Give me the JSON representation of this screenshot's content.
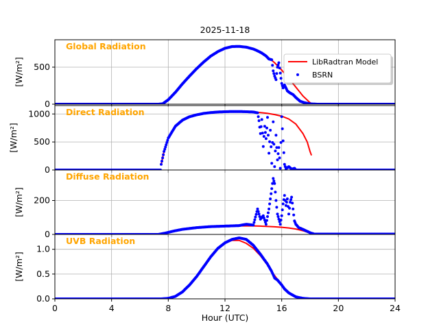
{
  "figure": {
    "title": "2025-11-18",
    "xlabel": "Hour (UTC)",
    "x_ticks": [
      0,
      4,
      8,
      12,
      16,
      20,
      24
    ],
    "x_tick_labels": [
      "0",
      "4",
      "8",
      "12",
      "16",
      "20",
      "24"
    ],
    "xlim": [
      0,
      24
    ]
  },
  "legend": {
    "entries": [
      "LibRadtran Model",
      "BSRN"
    ],
    "location": "right of Global Radiation panel"
  },
  "colors": {
    "model": "#ff0000",
    "bsrn": "#0000ff",
    "panel_title": "#ffa500",
    "grid": "#b0b0b0"
  },
  "chart_data": [
    {
      "type": "line",
      "title": "Global Radiation",
      "ylabel": "[W/m²]",
      "ylim": [
        0,
        870
      ],
      "y_ticks": [
        0,
        500
      ],
      "y_tick_labels": [
        "0",
        "500"
      ],
      "series": [
        {
          "name": "LibRadtran Model",
          "kind": "line",
          "x": [
            0,
            7.3,
            7.6,
            8,
            8.5,
            9,
            9.5,
            10,
            10.5,
            11,
            11.5,
            12,
            12.5,
            13,
            13.5,
            14,
            14.5,
            15,
            15.5,
            16,
            16.5,
            17,
            17.5,
            18,
            18.2,
            24
          ],
          "y": [
            0,
            0,
            5,
            60,
            160,
            275,
            380,
            480,
            570,
            650,
            710,
            755,
            778,
            780,
            770,
            745,
            700,
            640,
            560,
            460,
            350,
            230,
            110,
            20,
            0,
            0
          ]
        },
        {
          "name": "BSRN",
          "kind": "scatter",
          "x": [
            0,
            7.3,
            7.6,
            8,
            8.5,
            9,
            9.5,
            10,
            10.5,
            11,
            11.5,
            12,
            12.5,
            13,
            13.5,
            14,
            14.3,
            14.6,
            14.9,
            15.1,
            15.3,
            15.4,
            15.5,
            15.6,
            15.7,
            15.8,
            15.9,
            16,
            16.1,
            16.2,
            16.4,
            16.6,
            16.8,
            17,
            17.3,
            17.6,
            18,
            18.5,
            24
          ],
          "y": [
            0,
            0,
            5,
            60,
            160,
            275,
            380,
            480,
            570,
            650,
            710,
            755,
            778,
            780,
            770,
            745,
            720,
            690,
            650,
            610,
            600,
            450,
            380,
            330,
            500,
            560,
            420,
            280,
            220,
            260,
            180,
            150,
            130,
            90,
            40,
            20,
            5,
            0,
            0
          ]
        }
      ]
    },
    {
      "type": "line",
      "title": "Direct Radiation",
      "ylabel": "[W/m²]",
      "ylim": [
        0,
        1150
      ],
      "y_ticks": [
        0,
        500,
        1000
      ],
      "y_tick_labels": [
        "0",
        "500",
        "1000"
      ],
      "series": [
        {
          "name": "LibRadtran Model",
          "kind": "line",
          "x": [
            7.5,
            7.7,
            8,
            8.5,
            9,
            9.5,
            10,
            10.5,
            11,
            11.5,
            12,
            12.5,
            13,
            13.5,
            14,
            14.5,
            15,
            15.5,
            16,
            16.5,
            17,
            17.5,
            17.8,
            18,
            18.1
          ],
          "y": [
            100,
            330,
            570,
            780,
            890,
            950,
            985,
            1010,
            1025,
            1035,
            1040,
            1043,
            1043,
            1040,
            1035,
            1025,
            1010,
            990,
            960,
            910,
            820,
            650,
            500,
            330,
            260
          ]
        },
        {
          "name": "BSRN",
          "kind": "scatter",
          "x": [
            0,
            7.45,
            7.5,
            7.7,
            8,
            8.5,
            9,
            9.5,
            10,
            10.5,
            11,
            11.5,
            12,
            12.5,
            13,
            13.5,
            14,
            14.3,
            14.4,
            14.5,
            14.6,
            14.7,
            14.8,
            14.9,
            15,
            15.1,
            15.2,
            15.3,
            15.4,
            15.5,
            15.6,
            15.7,
            15.8,
            15.9,
            16,
            16.1,
            16.2,
            16.3,
            16.5,
            16.7,
            16.9,
            17,
            24
          ],
          "y": [
            0,
            0,
            100,
            330,
            570,
            780,
            890,
            950,
            985,
            1010,
            1025,
            1035,
            1040,
            1043,
            1043,
            1040,
            1035,
            1020,
            880,
            650,
            900,
            420,
            780,
            560,
            940,
            300,
            710,
            120,
            860,
            60,
            620,
            180,
            400,
            30,
            950,
            520,
            100,
            20,
            60,
            15,
            30,
            0,
            0
          ]
        }
      ]
    },
    {
      "type": "line",
      "title": "Diffuse Radiation",
      "ylabel": "[W/m²]",
      "ylim": [
        0,
        380
      ],
      "y_ticks": [
        0,
        200
      ],
      "y_tick_labels": [
        "0",
        "200"
      ],
      "series": [
        {
          "name": "LibRadtran Model",
          "kind": "line",
          "x": [
            0,
            7.3,
            7.8,
            8.5,
            9,
            10,
            11,
            12,
            13,
            14,
            14.5,
            15,
            15.5,
            16,
            16.5,
            17,
            17.5,
            18,
            18.3,
            24
          ],
          "y": [
            0,
            0,
            8,
            22,
            30,
            40,
            46,
            49,
            50,
            50,
            49,
            47,
            45,
            42,
            38,
            32,
            22,
            8,
            0,
            0
          ]
        },
        {
          "name": "BSRN",
          "kind": "scatter",
          "x": [
            0,
            7.3,
            7.8,
            8.5,
            9,
            10,
            11,
            12,
            13,
            13.5,
            14,
            14.3,
            14.5,
            14.7,
            14.9,
            15.1,
            15.3,
            15.4,
            15.5,
            15.6,
            15.7,
            15.8,
            15.9,
            16,
            16.1,
            16.2,
            16.3,
            16.4,
            16.5,
            16.6,
            16.7,
            16.8,
            16.9,
            17,
            17.2,
            17.5,
            18,
            18.3,
            24
          ],
          "y": [
            0,
            0,
            8,
            22,
            30,
            40,
            46,
            49,
            52,
            60,
            55,
            150,
            90,
            110,
            60,
            150,
            270,
            330,
            300,
            200,
            120,
            90,
            60,
            110,
            180,
            230,
            170,
            210,
            120,
            190,
            220,
            150,
            80,
            60,
            40,
            30,
            10,
            2,
            2
          ]
        }
      ]
    },
    {
      "type": "line",
      "title": "UVB Radiation",
      "ylabel": "[W/m²]",
      "ylim": [
        0,
        1.3
      ],
      "y_ticks": [
        0.0,
        0.5,
        1.0
      ],
      "y_tick_labels": [
        "0.0",
        "0.5",
        "1.0"
      ],
      "series": [
        {
          "name": "LibRadtran Model",
          "kind": "line",
          "x": [
            0,
            7.5,
            8,
            8.5,
            9,
            9.5,
            10,
            10.5,
            11,
            11.5,
            12,
            12.5,
            13,
            13.5,
            14,
            14.5,
            15,
            15.5,
            16,
            16.5,
            17,
            17.5,
            18,
            24
          ],
          "y": [
            0,
            0,
            0.01,
            0.05,
            0.14,
            0.28,
            0.45,
            0.65,
            0.85,
            1.02,
            1.13,
            1.18,
            1.18,
            1.12,
            1.02,
            0.87,
            0.68,
            0.47,
            0.28,
            0.13,
            0.04,
            0.005,
            0,
            0
          ]
        },
        {
          "name": "BSRN",
          "kind": "scatter",
          "x": [
            0,
            7.5,
            8,
            8.5,
            9,
            9.5,
            10,
            10.5,
            11,
            11.5,
            12,
            12.5,
            13,
            13.5,
            14,
            14.5,
            15,
            15.3,
            15.5,
            15.7,
            16,
            16.2,
            16.5,
            17,
            17.5,
            18,
            24
          ],
          "y": [
            0,
            0,
            0.01,
            0.05,
            0.14,
            0.28,
            0.45,
            0.65,
            0.85,
            1.02,
            1.13,
            1.2,
            1.23,
            1.2,
            1.08,
            0.9,
            0.7,
            0.55,
            0.42,
            0.38,
            0.28,
            0.2,
            0.12,
            0.04,
            0.01,
            0,
            0
          ]
        }
      ]
    }
  ]
}
